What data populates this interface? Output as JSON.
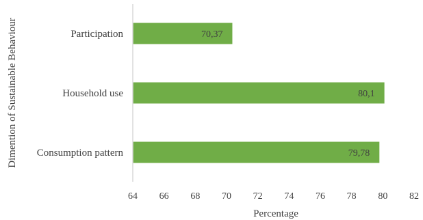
{
  "chart_data": {
    "type": "bar",
    "orientation": "horizontal",
    "categories": [
      "Participation",
      "Household use",
      "Consumption pattern"
    ],
    "values": [
      70.37,
      80.1,
      79.78
    ],
    "data_labels": [
      "70,37",
      "80,1",
      "79,78"
    ],
    "xlabel": "Percentage",
    "ylabel": "Dimention of  Sustainable Behaviour",
    "xlim": [
      64,
      82
    ],
    "xticks": [
      64,
      66,
      68,
      70,
      72,
      74,
      76,
      78,
      80,
      82
    ],
    "grid": false,
    "bar_color": "#70ad47",
    "axis_color": "#d9d9d9"
  }
}
